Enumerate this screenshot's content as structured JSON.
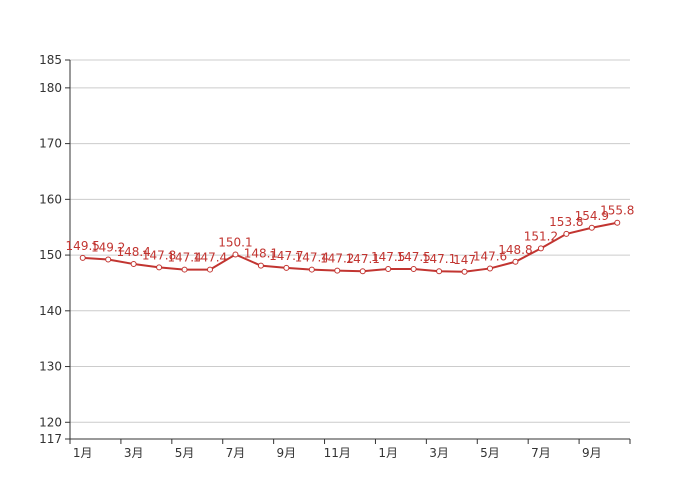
{
  "chart_data": {
    "type": "line",
    "categories": [
      "1月",
      null,
      "3月",
      null,
      "5月",
      null,
      "7月",
      null,
      "9月",
      null,
      "11月",
      null,
      "1月",
      null,
      "3月",
      null,
      "5月",
      null,
      "7月",
      null,
      "9月",
      null
    ],
    "values": [
      149.5,
      149.2,
      148.4,
      147.8,
      147.4,
      147.4,
      150.1,
      148.1,
      147.7,
      147.4,
      147.2,
      147.1,
      147.5,
      147.5,
      147.1,
      147,
      147.6,
      148.8,
      151.2,
      153.8,
      154.9,
      155.8
    ],
    "color": "#c23531",
    "ylim": [
      117,
      185
    ],
    "yticks": [
      117,
      120,
      130,
      140,
      150,
      160,
      170,
      180,
      185
    ],
    "grid": true
  }
}
